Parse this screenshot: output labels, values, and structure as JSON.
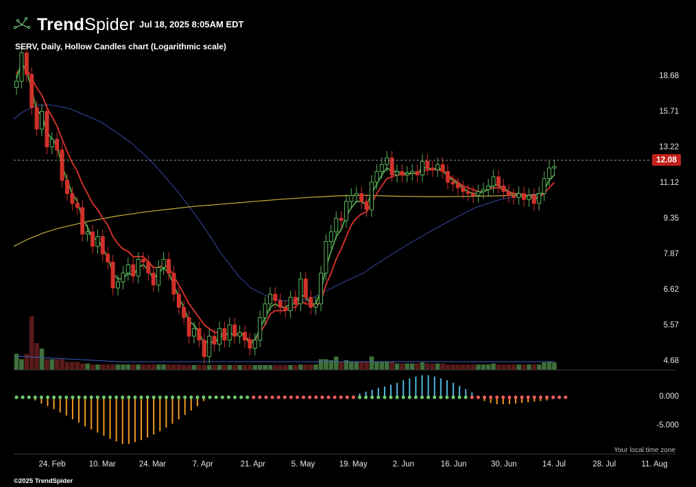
{
  "header": {
    "brand_bold": "Trend",
    "brand_light": "Spider",
    "timestamp": "Jul 18, 2025 8:05AM EDT",
    "subtitle": "SERV, Daily, Hollow Candles chart (Logarithmic scale)"
  },
  "footer": {
    "timezone_note": "Your local time zone",
    "copyright": "©2025 TrendSpider"
  },
  "chart_data": [
    {
      "type": "candlestick",
      "symbol": "SERV",
      "interval": "Daily",
      "scale": "logarithmic",
      "y_tick_labels": [
        "18.68",
        "15.71",
        "13.22",
        "11.12",
        "9.35",
        "7.87",
        "6.62",
        "5.57",
        "4.68"
      ],
      "y_ticks": [
        18.68,
        15.71,
        13.22,
        11.12,
        9.35,
        7.87,
        6.62,
        5.57,
        4.68
      ],
      "ylim": [
        4.5,
        21.5
      ],
      "last_price": 12.08,
      "last_price_label": "12.08",
      "x_tick_labels": [
        "24. Feb",
        "10. Mar",
        "24. Mar",
        "7. Apr",
        "21. Apr",
        "5. May",
        "19. May",
        "2. Jun",
        "16. Jun",
        "30. Jun",
        "14. Jul",
        "28. Jul",
        "11. Aug"
      ],
      "closes": [
        18.3,
        21.0,
        18.9,
        16.1,
        14.5,
        15.8,
        13.3,
        13.8,
        13.1,
        11.3,
        10.6,
        10.1,
        9.9,
        8.7,
        8.8,
        8.2,
        8.6,
        7.9,
        7.6,
        6.7,
        6.9,
        7.2,
        7.5,
        7.1,
        7.7,
        7.6,
        7.2,
        6.8,
        7.4,
        7.7,
        7.2,
        6.5,
        6.1,
        5.8,
        5.3,
        5.5,
        5.2,
        4.8,
        5.3,
        5.1,
        5.5,
        5.2,
        5.6,
        5.3,
        5.4,
        5.2,
        5.0,
        5.2,
        5.8,
        6.2,
        6.5,
        6.3,
        6.1,
        6.0,
        6.4,
        6.2,
        7.0,
        6.4,
        6.1,
        6.2,
        7.2,
        8.4,
        8.8,
        9.4,
        9.3,
        10.2,
        10.5,
        10.6,
        10.2,
        9.8,
        11.2,
        11.8,
        12.2,
        12.6,
        11.6,
        11.8,
        11.6,
        11.7,
        11.8,
        11.6,
        12.4,
        12.0,
        11.9,
        12.2,
        11.8,
        11.2,
        11.1,
        10.9,
        10.7,
        10.6,
        10.5,
        10.7,
        10.8,
        11.0,
        11.5,
        11.0,
        10.7,
        10.5,
        10.4,
        10.6,
        10.3,
        10.5,
        10.1,
        10.6,
        11.4,
        12.0,
        12.08
      ],
      "volume": [
        3,
        2,
        3,
        10,
        5,
        4,
        2,
        2,
        2,
        2,
        1.5,
        1.5,
        1.5,
        1.2,
        1.2,
        1,
        1,
        1,
        1,
        1,
        1,
        1,
        1,
        1,
        1,
        1,
        1,
        1,
        1,
        1,
        1,
        1,
        1,
        0.9,
        0.9,
        0.9,
        0.9,
        0.9,
        0.9,
        0.9,
        0.9,
        0.9,
        0.9,
        0.9,
        0.9,
        0.9,
        0.9,
        0.9,
        0.9,
        0.9,
        0.9,
        0.9,
        0.9,
        0.9,
        0.9,
        0.9,
        1,
        1,
        1,
        1,
        2,
        2,
        1.8,
        2.5,
        1.5,
        1.8,
        1.5,
        1.5,
        1.5,
        1.5,
        2.5,
        1.5,
        1.5,
        1.5,
        1.5,
        1.2,
        1.2,
        1.2,
        1.2,
        1.2,
        1.4,
        1.2,
        1.2,
        1.2,
        1.2,
        1,
        1,
        1,
        1,
        1,
        1,
        1,
        1,
        1,
        1.2,
        1,
        1,
        1,
        1,
        1,
        1,
        1,
        1,
        1,
        1.4,
        1.6,
        1.4
      ],
      "ma_fast": [
        18.5,
        20.0,
        19.3,
        17.5,
        15.9,
        15.5,
        14.3,
        13.8,
        13.4,
        12.1,
        11.3,
        10.6,
        10.2,
        9.4,
        9.0,
        8.5,
        8.5,
        8.1,
        7.8,
        7.2,
        7.0,
        7.0,
        7.2,
        7.1,
        7.4,
        7.5,
        7.3,
        7.0,
        7.2,
        7.4,
        7.2,
        6.8,
        6.4,
        6.1,
        5.7,
        5.6,
        5.4,
        5.1,
        5.2,
        5.1,
        5.3,
        5.3,
        5.4,
        5.3,
        5.4,
        5.3,
        5.1,
        5.2,
        5.5,
        5.8,
        6.1,
        6.2,
        6.1,
        6.1,
        6.2,
        6.2,
        6.5,
        6.4,
        6.2,
        6.2,
        6.6,
        7.4,
        8.0,
        8.6,
        8.9,
        9.5,
        9.9,
        10.2,
        10.2,
        10.0,
        10.6,
        11.1,
        11.6,
        12.0,
        11.8,
        11.8,
        11.7,
        11.7,
        11.7,
        11.7,
        12.0,
        12.0,
        11.9,
        12.0,
        11.9,
        11.5,
        11.3,
        11.1,
        10.9,
        10.7,
        10.6,
        10.6,
        10.7,
        10.8,
        11.1,
        11.0,
        10.9,
        10.7,
        10.5,
        10.6,
        10.4,
        10.5,
        10.3,
        10.4,
        10.8,
        11.3,
        11.6
      ],
      "ma_slow": [
        19.0,
        19.5,
        19.4,
        18.6,
        17.7,
        17.1,
        16.1,
        15.4,
        14.7,
        13.8,
        13.0,
        12.3,
        11.8,
        11.1,
        10.6,
        10.1,
        9.8,
        9.4,
        9.1,
        8.6,
        8.3,
        8.1,
        8.0,
        7.8,
        7.8,
        7.8,
        7.6,
        7.4,
        7.4,
        7.5,
        7.4,
        7.1,
        6.8,
        6.5,
        6.2,
        6.0,
        5.8,
        5.6,
        5.5,
        5.4,
        5.4,
        5.3,
        5.4,
        5.3,
        5.4,
        5.3,
        5.2,
        5.2,
        5.4,
        5.6,
        5.9,
        6.0,
        6.0,
        6.0,
        6.1,
        6.1,
        6.3,
        6.2,
        6.2,
        6.1,
        6.3,
        6.8,
        7.2,
        7.7,
        8.1,
        8.6,
        9.1,
        9.4,
        9.6,
        9.7,
        10.1,
        10.6,
        11.0,
        11.4,
        11.5,
        11.6,
        11.6,
        11.6,
        11.7,
        11.7,
        11.8,
        11.9,
        11.9,
        11.9,
        11.8,
        11.6,
        11.4,
        11.2,
        11.0,
        10.9,
        10.8,
        10.7,
        10.7,
        10.8,
        10.9,
        10.9,
        10.8,
        10.7,
        10.6,
        10.6,
        10.5,
        10.5,
        10.4,
        10.4,
        10.6,
        10.9,
        11.2
      ],
      "ma_50": [
        15.2,
        15.6,
        15.9,
        16.1,
        16.3,
        16.3,
        16.3,
        16.2,
        16.1,
        16.0,
        15.8,
        15.6,
        15.4,
        15.2,
        15.0,
        14.7,
        14.4,
        14.1,
        13.8,
        13.5,
        13.1,
        12.8,
        12.4,
        12.0,
        11.6,
        11.2,
        10.8,
        10.4,
        10.0,
        9.6,
        9.2,
        8.8,
        8.4,
        8.0,
        7.7,
        7.4,
        7.1,
        6.9,
        6.7,
        6.6,
        6.5,
        6.4,
        6.35,
        6.3,
        6.3,
        6.3,
        6.3,
        6.35,
        6.4,
        6.5,
        6.6,
        6.7,
        6.8,
        6.9,
        7.0,
        7.1,
        7.2,
        7.35,
        7.5,
        7.65,
        7.8,
        7.95,
        8.1,
        8.25,
        8.4,
        8.55,
        8.7,
        8.85,
        9.0,
        9.15,
        9.3,
        9.45,
        9.6,
        9.75,
        9.9,
        10.0,
        10.1,
        10.2,
        10.3,
        10.35,
        10.4,
        10.45,
        10.5,
        10.55,
        10.6
      ],
      "ma_200": [
        8.2,
        8.5,
        8.75,
        8.95,
        9.1,
        9.25,
        9.38,
        9.5,
        9.6,
        9.7,
        9.78,
        9.86,
        9.94,
        10.0,
        10.06,
        10.12,
        10.18,
        10.24,
        10.3,
        10.35,
        10.4,
        10.44,
        10.48,
        10.5,
        10.5,
        10.48,
        10.46,
        10.45,
        10.44,
        10.44,
        10.45,
        10.46,
        10.47,
        10.48,
        10.5,
        10.52,
        10.55
      ],
      "oscillator": {
        "y_tick_labels": [
          "0.000",
          "-5.000"
        ],
        "y_ticks": [
          0,
          -5
        ],
        "values": [
          0.2,
          0.3,
          0.0,
          -0.5,
          -1.0,
          -1.4,
          -1.9,
          -2.4,
          -2.9,
          -3.5,
          -4.0,
          -4.6,
          -5.1,
          -5.6,
          -6.1,
          -6.6,
          -7.0,
          -7.4,
          -7.4,
          -7.1,
          -6.8,
          -6.4,
          -5.9,
          -5.4,
          -4.8,
          -4.2,
          -3.5,
          -2.8,
          -2.1,
          -1.4,
          -0.6,
          0.0,
          0.0,
          0.0,
          0.0,
          0.0,
          0.0,
          0.0,
          0.0,
          0.0,
          0.0,
          0.0,
          0.0,
          0.0,
          0.0,
          0.0,
          0.0,
          0.0,
          0.0,
          0.0,
          0.0,
          0.0,
          0.0,
          0.0,
          0.3,
          0.6,
          0.9,
          1.2,
          1.5,
          1.7,
          2.0,
          2.3,
          2.7,
          3.0,
          3.3,
          3.5,
          3.5,
          3.3,
          3.0,
          2.7,
          2.3,
          1.8,
          1.3,
          0.8,
          0.0,
          -0.6,
          -0.9,
          -1.1,
          -1.1,
          -1.1,
          -1.0,
          -0.9,
          -0.8,
          -0.7,
          -0.6,
          -0.5,
          -0.3,
          -0.2,
          -0.1
        ]
      }
    }
  ]
}
